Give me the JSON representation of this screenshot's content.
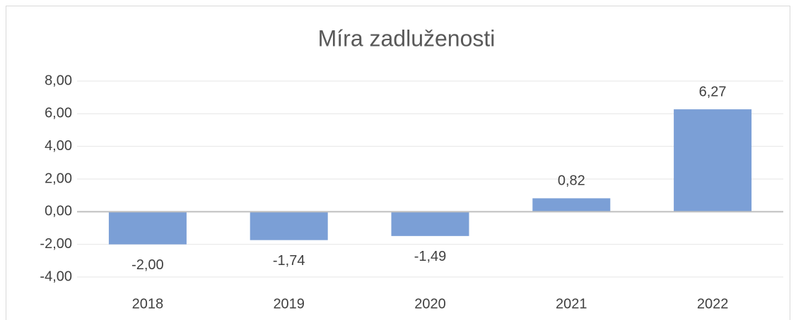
{
  "chart_data": {
    "type": "bar",
    "title": "Míra zadluženosti",
    "categories": [
      "2018",
      "2019",
      "2020",
      "2021",
      "2022"
    ],
    "values": [
      -2.0,
      -1.74,
      -1.49,
      0.82,
      6.27
    ],
    "value_labels": [
      "-2,00",
      "-1,74",
      "-1,49",
      "0,82",
      "6,27"
    ],
    "color": "#7b9fd6",
    "ylim": [
      -4,
      8
    ],
    "yticks": [
      {
        "value": -4,
        "label": "-4,00"
      },
      {
        "value": -2,
        "label": "-2,00"
      },
      {
        "value": 0,
        "label": "0,00"
      },
      {
        "value": 2,
        "label": "2,00"
      },
      {
        "value": 4,
        "label": "4,00"
      },
      {
        "value": 6,
        "label": "6,00"
      },
      {
        "value": 8,
        "label": "8,00"
      }
    ],
    "grid": true
  }
}
